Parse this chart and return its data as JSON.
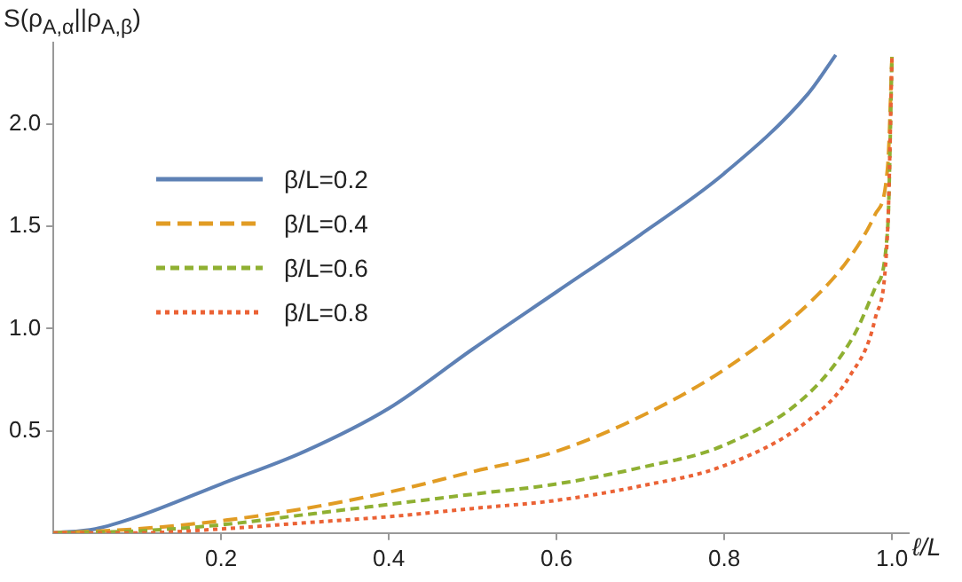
{
  "chart_data": {
    "type": "line",
    "xlabel": "ℓ/L",
    "ylabel": "S(ρ$_{A,α}$||ρ$_{A,β}$)",
    "xlim": [
      0,
      1.02
    ],
    "ylim": [
      0,
      2.4
    ],
    "xticks": [
      0.2,
      0.4,
      0.6,
      0.8,
      {
        "value": 1,
        "label": "1.0"
      }
    ],
    "yticks": [
      0.5,
      {
        "value": 1,
        "label": "1.0"
      },
      1.5,
      {
        "value": 2,
        "label": "2.0"
      }
    ],
    "grid": false,
    "legend": "top left",
    "marker": "none",
    "series": [
      {
        "name": "β/L=0.2",
        "color": "#5e81b5",
        "line_style": "solid",
        "x": [
          0,
          0.05,
          0.1,
          0.2,
          0.3,
          0.4,
          0.5,
          0.6,
          0.7,
          0.8,
          0.9,
          0.933
        ],
        "values": [
          0,
          0.02,
          0.08,
          0.24,
          0.4,
          0.61,
          0.9,
          1.18,
          1.46,
          1.76,
          2.15,
          2.34
        ]
      },
      {
        "name": "β/L=0.4",
        "color": "#e19c24",
        "line_style": "dashed",
        "x": [
          0,
          0.1,
          0.2,
          0.3,
          0.4,
          0.5,
          0.6,
          0.7,
          0.8,
          0.9,
          0.95,
          0.98,
          0.995,
          1.0
        ],
        "values": [
          0,
          0.02,
          0.06,
          0.12,
          0.2,
          0.3,
          0.4,
          0.57,
          0.8,
          1.12,
          1.35,
          1.56,
          1.8,
          2.33
        ]
      },
      {
        "name": "β/L=0.6",
        "color": "#8fb032",
        "line_style": "dashed",
        "x": [
          0,
          0.1,
          0.2,
          0.3,
          0.4,
          0.5,
          0.6,
          0.7,
          0.8,
          0.9,
          0.955,
          0.98,
          0.995,
          1.0
        ],
        "values": [
          0,
          0.01,
          0.04,
          0.09,
          0.14,
          0.19,
          0.24,
          0.32,
          0.43,
          0.68,
          0.97,
          1.2,
          1.5,
          2.33
        ]
      },
      {
        "name": "β/L=0.8",
        "color": "#eb6235",
        "line_style": "dotted",
        "x": [
          0,
          0.1,
          0.2,
          0.3,
          0.4,
          0.5,
          0.6,
          0.7,
          0.8,
          0.9,
          0.95,
          0.98,
          0.995,
          1.0
        ],
        "values": [
          0,
          0.0,
          0.02,
          0.05,
          0.08,
          0.12,
          0.16,
          0.23,
          0.33,
          0.55,
          0.77,
          1.05,
          1.5,
          2.33
        ]
      }
    ]
  }
}
